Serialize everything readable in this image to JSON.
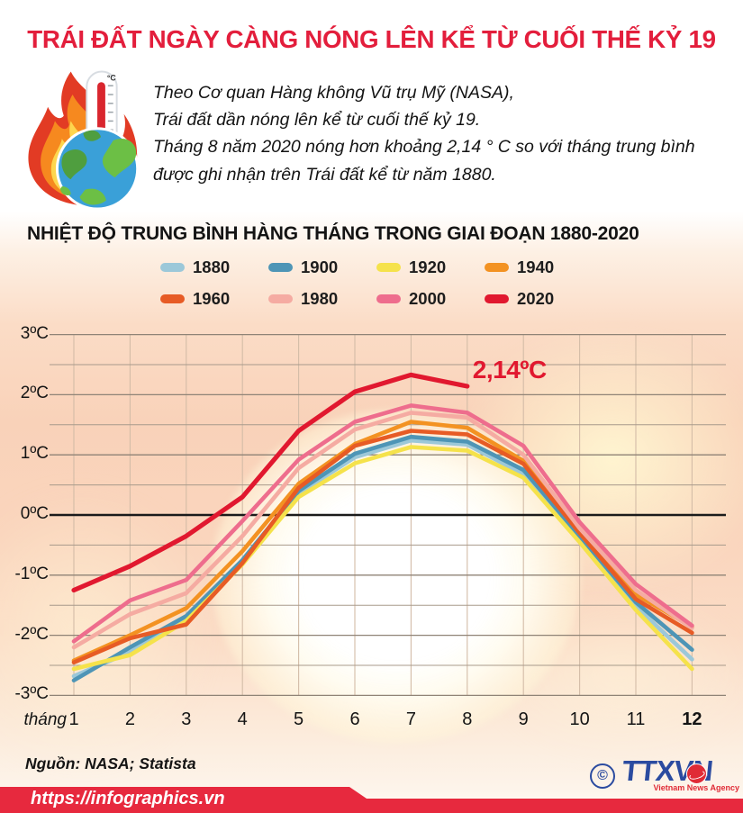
{
  "header": {
    "title": "TRÁI ĐẤT NGÀY CÀNG NÓNG LÊN KỂ TỪ CUỐI THẾ KỶ 19",
    "icon": "fire-thermometer-globe-icon",
    "intro_lines": [
      "Theo Cơ quan Hàng không Vũ trụ Mỹ (NASA),",
      "Trái đất dần nóng lên kể từ cuối thế kỷ 19.",
      "Tháng 8 năm 2020 nóng hơn khoảng 2,14 ° C so với tháng trung bình",
      "được ghi nhận trên Trái đất kể từ năm 1880."
    ]
  },
  "chart_data": {
    "type": "line",
    "title": "NHIỆT ĐỘ TRUNG BÌNH HÀNG THÁNG TRONG GIAI ĐOẠN 1880-2020",
    "xlabel_prefix": "tháng",
    "x": [
      1,
      2,
      3,
      4,
      5,
      6,
      7,
      8,
      9,
      10,
      11,
      12
    ],
    "ylim": [
      -3,
      3
    ],
    "grid_minor_step": 0.5,
    "ytick_values": [
      3,
      2,
      1,
      0,
      -1,
      -2,
      -3
    ],
    "ytick_labels": [
      "3ºC",
      "2ºC",
      "1ºC",
      "0ºC",
      "-1ºC",
      "-2ºC",
      "-3ºC"
    ],
    "legend_position": "top",
    "annotation": {
      "text": "2,14ºC",
      "month": 8,
      "value": 2.14,
      "color": "#e1182f"
    },
    "series": [
      {
        "name": "1880",
        "color": "#9cc8d9",
        "values": [
          -2.68,
          -2.28,
          -1.72,
          -0.78,
          0.36,
          0.96,
          1.24,
          1.17,
          0.68,
          -0.4,
          -1.52,
          -2.4
        ]
      },
      {
        "name": "1900",
        "color": "#4e95b6",
        "values": [
          -2.75,
          -2.2,
          -1.68,
          -0.75,
          0.4,
          1.02,
          1.3,
          1.22,
          0.75,
          -0.35,
          -1.45,
          -2.24
        ]
      },
      {
        "name": "1920",
        "color": "#f5e24b",
        "values": [
          -2.56,
          -2.33,
          -1.76,
          -0.82,
          0.3,
          0.86,
          1.13,
          1.07,
          0.62,
          -0.45,
          -1.58,
          -2.56
        ]
      },
      {
        "name": "1940",
        "color": "#f39222",
        "values": [
          -2.42,
          -2.0,
          -1.55,
          -0.6,
          0.52,
          1.18,
          1.55,
          1.45,
          0.9,
          -0.27,
          -1.32,
          -1.86
        ]
      },
      {
        "name": "1960",
        "color": "#e75b25",
        "values": [
          -2.45,
          -2.05,
          -1.82,
          -0.8,
          0.45,
          1.15,
          1.4,
          1.34,
          0.85,
          -0.3,
          -1.4,
          -1.96
        ]
      },
      {
        "name": "1980",
        "color": "#f5aba2",
        "values": [
          -2.2,
          -1.65,
          -1.3,
          -0.35,
          0.78,
          1.42,
          1.7,
          1.62,
          1.0,
          -0.22,
          -1.25,
          -1.88
        ]
      },
      {
        "name": "2000",
        "color": "#ee6d8d",
        "values": [
          -2.1,
          -1.42,
          -1.08,
          -0.1,
          0.92,
          1.55,
          1.82,
          1.7,
          1.15,
          -0.12,
          -1.15,
          -1.84
        ]
      },
      {
        "name": "2020",
        "color": "#e1182f",
        "values": [
          -1.25,
          -0.85,
          -0.35,
          0.3,
          1.4,
          2.05,
          2.33,
          2.14,
          null,
          null,
          null,
          null
        ]
      }
    ]
  },
  "footer": {
    "source": "Nguồn: NASA; Statista",
    "url": "https://infographics.vn",
    "logo": {
      "copyright": "©",
      "text": "TTXVN",
      "tagline": "Vietnam News Agency"
    }
  },
  "colors": {
    "title_red": "#e31e3c",
    "ribbon_red": "#e7293e",
    "logo_blue": "#2b4ba0",
    "grid_major": "#8f8376",
    "grid_minor": "#a89a8b",
    "grid_vertical": "#d3bca7",
    "zero_line": "#1b1b1b"
  }
}
